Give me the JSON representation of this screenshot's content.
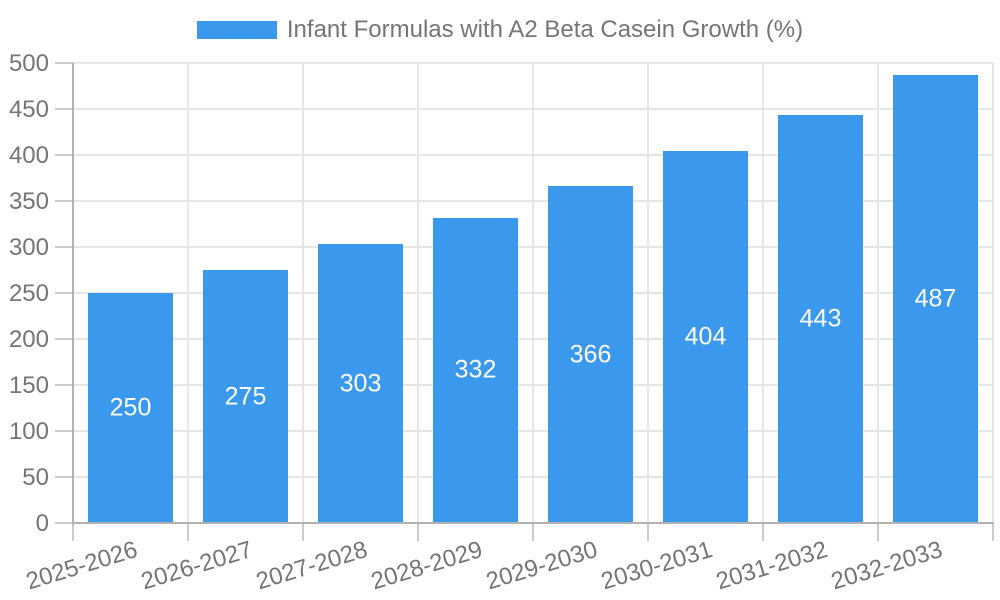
{
  "chart_data": {
    "type": "bar",
    "title": "Infant Formulas with A2 Beta Casein Growth (%)",
    "legend_entries": [
      {
        "label": "Infant Formulas with A2 Beta Casein Growth (%)",
        "color": "#3a99ec"
      }
    ],
    "legend_position": "top-center",
    "categories": [
      "2025-2026",
      "2026-2027",
      "2027-2028",
      "2028-2029",
      "2029-2030",
      "2030-2031",
      "2031-2032",
      "2032-2033"
    ],
    "series": [
      {
        "name": "Infant Formulas with A2 Beta Casein Growth (%)",
        "values": [
          250,
          275,
          303,
          332,
          366,
          404,
          443,
          487
        ]
      }
    ],
    "bar_value_labels": [
      "250",
      "275",
      "303",
      "332",
      "366",
      "404",
      "443",
      "487"
    ],
    "xlabel": "",
    "ylabel": "",
    "ylim": [
      0,
      500
    ],
    "ytick_step": 50,
    "ytick_labels": [
      "0",
      "50",
      "100",
      "150",
      "200",
      "250",
      "300",
      "350",
      "400",
      "450",
      "500"
    ],
    "grid": true,
    "x_label_rotation_deg": -17
  },
  "colors": {
    "bar": "#3a99ec",
    "axis_text": "#757575",
    "bar_label_text": "#ffffff",
    "gridline": "#e6e6e6",
    "axis_line": "#b2b2b2",
    "tick": "#cccccc",
    "background": "#ffffff"
  }
}
